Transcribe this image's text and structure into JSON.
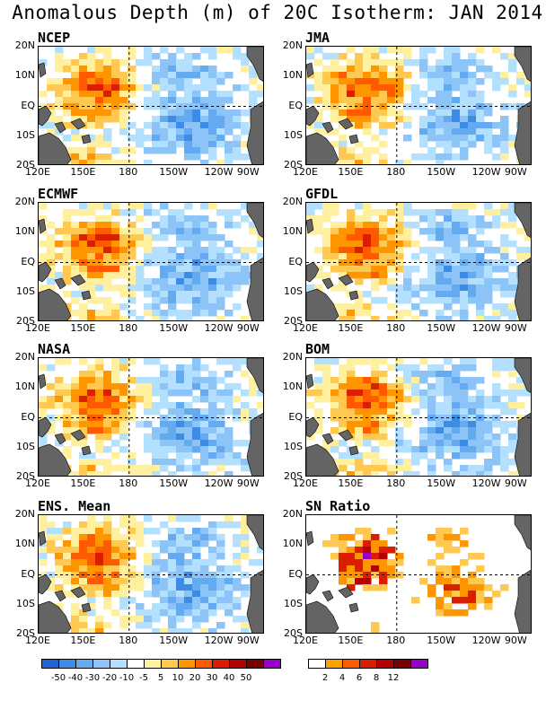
{
  "title": "Anomalous Depth (m) of 20C Isotherm: JAN 2014",
  "y_labels": [
    "20N",
    "10N",
    "EQ",
    "10S",
    "20S"
  ],
  "x_labels": [
    "120E",
    "150E",
    "180",
    "150W",
    "120W",
    "90W"
  ],
  "panels": [
    {
      "name": "NCEP",
      "variant": 0
    },
    {
      "name": "JMA",
      "variant": 1
    },
    {
      "name": "ECMWF",
      "variant": 2
    },
    {
      "name": "GFDL",
      "variant": 3
    },
    {
      "name": "NASA",
      "variant": 4
    },
    {
      "name": "BOM",
      "variant": 5
    },
    {
      "name": "ENS. Mean",
      "variant": 6
    },
    {
      "name": "SN Ratio",
      "variant": 7
    }
  ],
  "colorbar_anomaly": {
    "colors": [
      "#1e64d2",
      "#3c8ce6",
      "#64aaf0",
      "#8cc4f8",
      "#b4e0ff",
      "#ffffff",
      "#fff0a0",
      "#ffc850",
      "#ff9600",
      "#ff5a00",
      "#dc1e00",
      "#b40000",
      "#780000",
      "#9600c8"
    ],
    "labels": [
      "-50",
      "-40",
      "-30",
      "-20",
      "-10",
      "-5",
      "5",
      "10",
      "20",
      "30",
      "40",
      "50"
    ]
  },
  "colorbar_sn": {
    "colors": [
      "#ffffff",
      "#ffa000",
      "#ff5a00",
      "#dc1e00",
      "#b40000",
      "#780000",
      "#9600c8"
    ],
    "labels": [
      "2",
      "4",
      "6",
      "8",
      "12"
    ]
  },
  "land_color": "#646464"
}
